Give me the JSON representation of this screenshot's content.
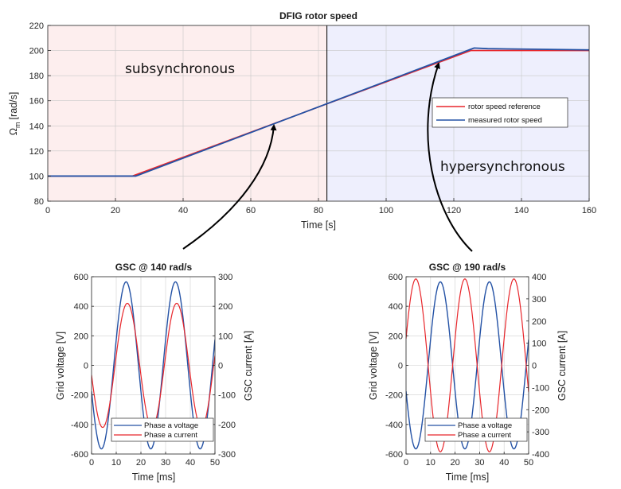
{
  "colors": {
    "reference": "#e8262b",
    "measured": "#2452a5",
    "subsync_bg": "#fdeeee",
    "hypersync_bg": "#eeeffd",
    "voltage": "#2452a5",
    "current": "#e8262b"
  },
  "chart_data": [
    {
      "id": "rotor",
      "type": "line",
      "title": "DFIG rotor speed",
      "xlabel": "Time [s]",
      "ylabel_main": "Ω",
      "ylabel_sub": "m",
      "ylabel_unit": "[rad/s]",
      "xlim": [
        0,
        160
      ],
      "ylim": [
        80,
        220
      ],
      "xticks": [
        0,
        20,
        40,
        60,
        80,
        100,
        120,
        140,
        160
      ],
      "yticks": [
        80,
        100,
        120,
        140,
        160,
        180,
        200,
        220
      ],
      "grid": true,
      "legend_position": "right",
      "divider_x": 82.5,
      "regions": [
        {
          "label": "subsynchronous",
          "x": [
            0,
            82.5
          ]
        },
        {
          "label": "hypersynchronous",
          "x": [
            82.5,
            160
          ]
        }
      ],
      "series": [
        {
          "name": "rotor speed reference",
          "x": [
            0,
            25,
            125,
            160
          ],
          "y": [
            100,
            100,
            200,
            200
          ]
        },
        {
          "name": "measured rotor speed",
          "x": [
            0,
            26,
            125,
            126,
            130,
            160
          ],
          "y": [
            100,
            100,
            201,
            202,
            201.5,
            200.5
          ]
        }
      ]
    },
    {
      "id": "gsc140",
      "type": "line",
      "title": "GSC @ 140 rad/s",
      "xlabel": "Time [ms]",
      "ylabel_left": "Grid voltage [V]",
      "ylabel_right": "GSC current [A]",
      "xlim": [
        0,
        50
      ],
      "ylim_left": [
        -600,
        600
      ],
      "ylim_right": [
        -300,
        300
      ],
      "xticks": [
        0,
        10,
        20,
        30,
        40,
        50
      ],
      "yticks_left": [
        -600,
        -400,
        -200,
        0,
        200,
        400,
        600
      ],
      "yticks_right": [
        -300,
        -200,
        -100,
        0,
        100,
        200,
        300
      ],
      "grid": true,
      "legend_position": "bottom-right",
      "series": [
        {
          "name": "Phase a voltage",
          "axis": "left",
          "amplitude": 565,
          "period_ms": 20,
          "peak_ms": 14
        },
        {
          "name": "Phase a current",
          "axis": "right",
          "amplitude": 210,
          "period_ms": 20,
          "peak_ms": 14.5
        }
      ]
    },
    {
      "id": "gsc190",
      "type": "line",
      "title": "GSC @ 190 rad/s",
      "xlabel": "Time [ms]",
      "ylabel_left": "Grid voltage [V]",
      "ylabel_right": "GSC current [A]",
      "xlim": [
        0,
        50
      ],
      "ylim_left": [
        -600,
        600
      ],
      "ylim_right": [
        -400,
        400
      ],
      "xticks": [
        0,
        10,
        20,
        30,
        40,
        50
      ],
      "yticks_left": [
        -600,
        -400,
        -200,
        0,
        200,
        400,
        600
      ],
      "yticks_right": [
        -400,
        -300,
        -200,
        -100,
        0,
        100,
        200,
        300,
        400
      ],
      "grid": true,
      "legend_position": "bottom-right",
      "series": [
        {
          "name": "Phase a voltage",
          "axis": "left",
          "amplitude": 565,
          "period_ms": 20,
          "peak_ms": 14
        },
        {
          "name": "Phase a current",
          "axis": "right",
          "amplitude": 390,
          "period_ms": 20,
          "peak_ms": 4
        }
      ]
    }
  ]
}
